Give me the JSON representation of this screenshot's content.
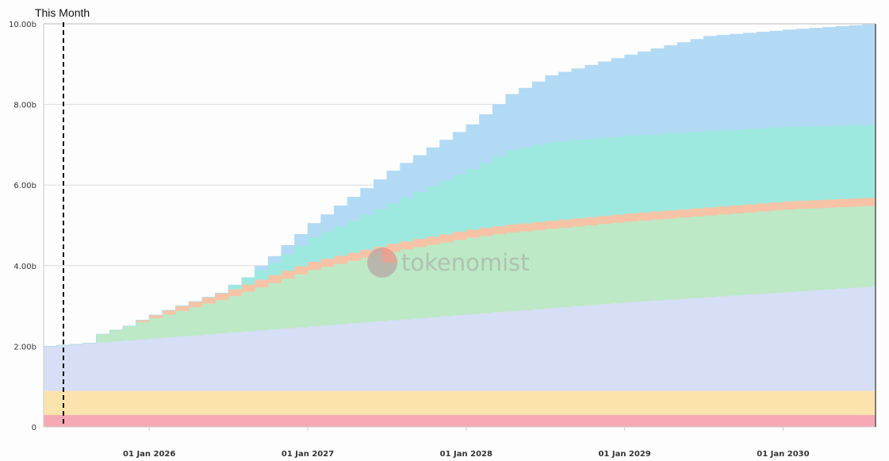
{
  "chart_data": {
    "type": "area",
    "stacked": true,
    "step": true,
    "title": "",
    "xlabel": "",
    "ylabel": "",
    "x_start": "2025-05",
    "x_end": "2030-08",
    "ylim": [
      0,
      10000000000
    ],
    "y_ticks": [
      {
        "value": 0,
        "label": "0"
      },
      {
        "value": 2000000000,
        "label": "2.00b"
      },
      {
        "value": 4000000000,
        "label": "4.00b"
      },
      {
        "value": 6000000000,
        "label": "6.00b"
      },
      {
        "value": 8000000000,
        "label": "8.00b"
      },
      {
        "value": 10000000000,
        "label": "10.00b"
      }
    ],
    "x_ticks": [
      {
        "date": "2026-01",
        "label": "01 Jan 2026"
      },
      {
        "date": "2027-01",
        "label": "01 Jan 2027"
      },
      {
        "date": "2028-01",
        "label": "01 Jan 2028"
      },
      {
        "date": "2029-01",
        "label": "01 Jan 2029"
      },
      {
        "date": "2030-01",
        "label": "01 Jan 2030"
      }
    ],
    "grid": true,
    "legend": "none",
    "marker": {
      "date": "2025-06",
      "label": "This Month"
    },
    "watermark": "tokenomist",
    "series": [
      {
        "color": "#f7a8b5",
        "points": [
          [
            "2025-05",
            0.3
          ],
          [
            "2030-08",
            0.3
          ]
        ]
      },
      {
        "color": "#fae3ad",
        "points": [
          [
            "2025-05",
            0.6
          ],
          [
            "2030-08",
            0.6
          ]
        ]
      },
      {
        "color": "#d6dff5",
        "points": [
          [
            "2025-05",
            1.1
          ],
          [
            "2025-07",
            1.15
          ],
          [
            "2026-01",
            1.3
          ],
          [
            "2027-01",
            1.6
          ],
          [
            "2028-01",
            1.9
          ],
          [
            "2029-01",
            2.2
          ],
          [
            "2030-01",
            2.45
          ],
          [
            "2030-08",
            2.6
          ]
        ]
      },
      {
        "color": "#bde9c6",
        "points": [
          [
            "2025-05",
            0
          ],
          [
            "2025-08",
            0
          ],
          [
            "2025-09",
            0.2
          ],
          [
            "2026-01",
            0.5
          ],
          [
            "2026-04",
            0.7
          ],
          [
            "2026-07",
            0.9
          ],
          [
            "2027-01",
            1.4
          ],
          [
            "2027-07",
            1.7
          ],
          [
            "2028-01",
            1.9
          ],
          [
            "2028-04",
            1.95
          ],
          [
            "2029-01",
            2.0
          ],
          [
            "2030-01",
            2.05
          ],
          [
            "2030-08",
            2.0
          ]
        ]
      },
      {
        "color": "#f6c3a6",
        "points": [
          [
            "2025-05",
            0
          ],
          [
            "2025-11",
            0
          ],
          [
            "2025-12",
            0.05
          ],
          [
            "2026-02",
            0.1
          ],
          [
            "2026-05",
            0.15
          ],
          [
            "2026-09",
            0.19
          ],
          [
            "2027-01",
            0.2
          ],
          [
            "2030-08",
            0.2
          ]
        ]
      },
      {
        "color": "#9ee9df",
        "points": [
          [
            "2025-05",
            0
          ],
          [
            "2026-06",
            0
          ],
          [
            "2026-07",
            0.1
          ],
          [
            "2026-10",
            0.3
          ],
          [
            "2027-01",
            0.6
          ],
          [
            "2027-07",
            1.0
          ],
          [
            "2028-01",
            1.5
          ],
          [
            "2028-04",
            1.85
          ],
          [
            "2028-07",
            1.95
          ],
          [
            "2029-01",
            1.93
          ],
          [
            "2030-01",
            1.85
          ],
          [
            "2030-08",
            1.8
          ]
        ]
      },
      {
        "color": "#b3daf5",
        "points": [
          [
            "2025-05",
            0
          ],
          [
            "2026-08",
            0
          ],
          [
            "2026-09",
            0.1
          ],
          [
            "2027-01",
            0.35
          ],
          [
            "2027-07",
            0.8
          ],
          [
            "2028-01",
            1.1
          ],
          [
            "2028-07",
            1.65
          ],
          [
            "2029-01",
            2.0
          ],
          [
            "2029-07",
            2.35
          ],
          [
            "2030-01",
            2.4
          ],
          [
            "2030-08",
            2.5
          ]
        ]
      }
    ]
  }
}
